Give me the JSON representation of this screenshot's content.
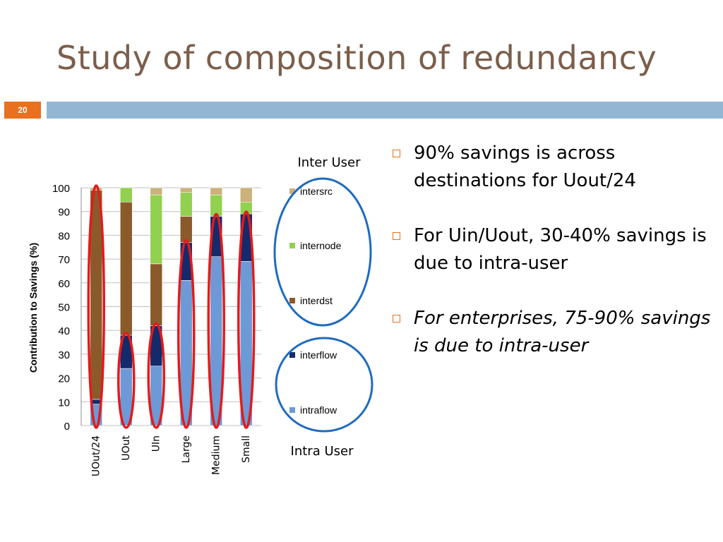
{
  "slide": {
    "title": "Study of composition of redundancy",
    "number": "20"
  },
  "bullets": [
    {
      "text": "90% savings is across destinations for Uout/24",
      "italic": false
    },
    {
      "text": "For Uin/Uout, 30-40% savings is due to intra-user",
      "italic": false
    },
    {
      "text": "For enterprises, 75-90% savings is due to intra-user",
      "italic": true
    }
  ],
  "annotations": {
    "inter_label": "Inter User",
    "intra_label": "Intra User",
    "ellipse_color": "#1f6bbf",
    "highlight_color": "#e31b1b"
  },
  "chart_data": {
    "type": "bar",
    "stacked": true,
    "categories": [
      "UOut/24",
      "UOut",
      "UIn",
      "Large",
      "Medium",
      "Small"
    ],
    "series": [
      {
        "name": "intraflow",
        "color": "#6d9ad6",
        "values": [
          9,
          24,
          25,
          61,
          71,
          69
        ]
      },
      {
        "name": "interflow",
        "color": "#142a6b",
        "values": [
          2,
          14,
          17,
          16,
          17,
          20
        ]
      },
      {
        "name": "interdst",
        "color": "#8b5a2b",
        "values": [
          88,
          56,
          26,
          11,
          0,
          0
        ]
      },
      {
        "name": "internode",
        "color": "#92d050",
        "values": [
          0,
          6,
          29,
          10,
          9,
          5
        ]
      },
      {
        "name": "intersrc",
        "color": "#c9b27c",
        "values": [
          1,
          0,
          3,
          2,
          3,
          6
        ]
      }
    ],
    "ylabel": "Contribution to Savings (%)",
    "ylim": [
      0,
      100
    ],
    "yticks": [
      "0",
      "10",
      "20",
      "30",
      "40",
      "50",
      "60",
      "70",
      "80",
      "90",
      "100"
    ],
    "legend": [
      "intersrc",
      "internode",
      "interdst",
      "interflow",
      "intraflow"
    ],
    "highlighted_categories": [
      "UOut/24",
      "UOut",
      "UIn",
      "Large",
      "Medium",
      "Small"
    ],
    "grid": true
  }
}
